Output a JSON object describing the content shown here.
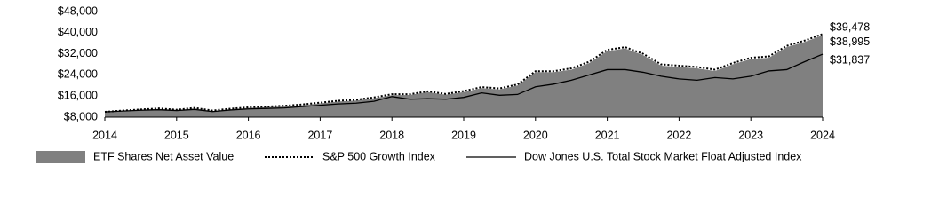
{
  "chart_data": {
    "type": "line",
    "x": [
      2014,
      2014.25,
      2014.5,
      2014.75,
      2015,
      2015.25,
      2015.5,
      2015.75,
      2016,
      2016.25,
      2016.5,
      2016.75,
      2017,
      2017.25,
      2017.5,
      2017.75,
      2018,
      2018.25,
      2018.5,
      2018.75,
      2019,
      2019.25,
      2019.5,
      2019.75,
      2020,
      2020.25,
      2020.5,
      2020.75,
      2021,
      2021.25,
      2021.5,
      2021.75,
      2022,
      2022.25,
      2022.5,
      2022.75,
      2023,
      2023.25,
      2023.5,
      2023.75,
      2024
    ],
    "series": [
      {
        "name": "ETF Shares Net Asset Value",
        "style": "area",
        "color": "#808080",
        "values": [
          10000,
          10400,
          10800,
          11100,
          10600,
          11300,
          10300,
          11000,
          11500,
          11800,
          12000,
          12500,
          13200,
          13900,
          14300,
          15200,
          16300,
          16400,
          17500,
          16500,
          17500,
          19000,
          18500,
          20000,
          25000,
          25000,
          26000,
          28500,
          33000,
          34000,
          31500,
          27500,
          27000,
          26500,
          25500,
          28000,
          30000,
          30500,
          34500,
          36500,
          38995
        ],
        "value_labels": [
          null,
          null,
          null,
          null,
          null,
          null,
          null,
          null,
          null,
          null,
          null,
          null,
          null,
          null,
          null,
          null,
          null,
          null,
          null,
          null,
          null,
          null,
          null,
          null,
          null,
          null,
          null,
          null,
          null,
          null,
          null,
          null,
          null,
          null,
          null,
          null,
          null,
          null,
          null,
          null,
          "$38,995"
        ]
      },
      {
        "name": "S&P 500 Growth Index",
        "style": "dotted",
        "color": "#000000",
        "values": [
          10000,
          10500,
          10900,
          11300,
          10800,
          11500,
          10500,
          11200,
          11700,
          12000,
          12300,
          12800,
          13500,
          14200,
          14600,
          15500,
          16700,
          16700,
          17800,
          16800,
          17900,
          19400,
          18900,
          20400,
          25400,
          25400,
          26500,
          29000,
          33500,
          34500,
          32000,
          28000,
          27500,
          27000,
          26000,
          28500,
          30500,
          31000,
          35000,
          37000,
          39478
        ],
        "value_labels": [
          null,
          null,
          null,
          null,
          null,
          null,
          null,
          null,
          null,
          null,
          null,
          null,
          null,
          null,
          null,
          null,
          null,
          null,
          null,
          null,
          null,
          null,
          null,
          null,
          null,
          null,
          null,
          null,
          null,
          null,
          null,
          null,
          null,
          null,
          null,
          null,
          null,
          null,
          null,
          null,
          "$39,478"
        ]
      },
      {
        "name": "Dow Jones U.S. Total Stock Market Float Adjusted Index",
        "style": "solid",
        "color": "#000000",
        "values": [
          10000,
          10300,
          10600,
          10800,
          10500,
          10900,
          10100,
          10700,
          11100,
          11300,
          11500,
          12000,
          12500,
          13000,
          13300,
          14000,
          15800,
          14800,
          15000,
          14800,
          15500,
          17200,
          16300,
          16600,
          19500,
          20500,
          22000,
          24000,
          26000,
          26000,
          25000,
          23500,
          22500,
          22000,
          23000,
          22500,
          23500,
          25500,
          26000,
          29000,
          31837
        ],
        "value_labels": [
          null,
          null,
          null,
          null,
          null,
          null,
          null,
          null,
          null,
          null,
          null,
          null,
          null,
          null,
          null,
          null,
          null,
          null,
          null,
          null,
          null,
          null,
          null,
          null,
          null,
          null,
          null,
          null,
          null,
          null,
          null,
          null,
          null,
          null,
          null,
          null,
          null,
          null,
          null,
          null,
          "$31,837"
        ]
      }
    ],
    "xlim": [
      2014,
      2024
    ],
    "xticks": [
      2014,
      2015,
      2016,
      2017,
      2018,
      2019,
      2020,
      2021,
      2022,
      2023,
      2024
    ],
    "ylim": [
      8000,
      48000
    ],
    "yticks": [
      {
        "value": 8000,
        "label": "$8,000"
      },
      {
        "value": 16000,
        "label": "$16,000"
      },
      {
        "value": 24000,
        "label": "$24,000"
      },
      {
        "value": 32000,
        "label": "$32,000"
      },
      {
        "value": 40000,
        "label": "$40,000"
      },
      {
        "value": 48000,
        "label": "$48,000"
      }
    ],
    "grid": false,
    "legend": "bottom"
  }
}
